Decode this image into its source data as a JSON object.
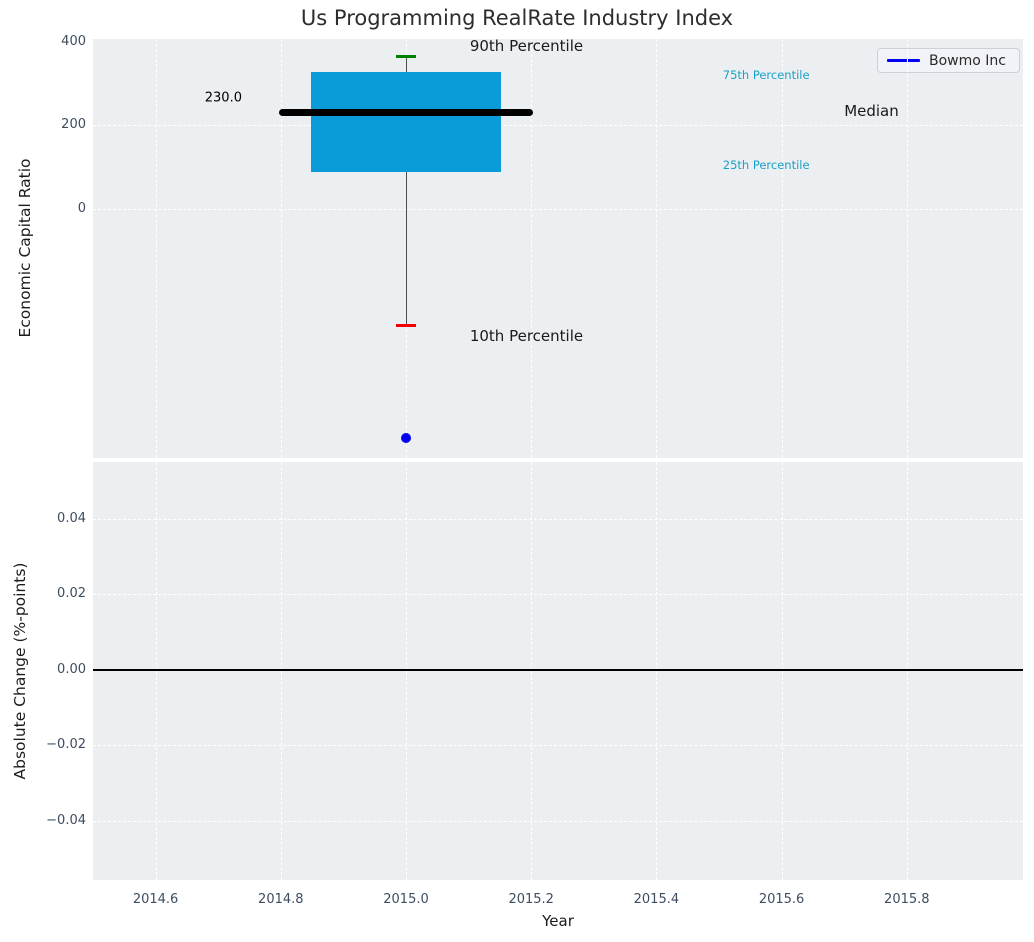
{
  "title": "Us Programming RealRate Industry Index",
  "colors": {
    "axes_background": "#ebeff1",
    "grid": "#ffffff",
    "tick_labels": "#3d4d60",
    "box_fill": "#0a9cd8",
    "median_line": "#000000",
    "cap_90th": "#008000",
    "cap_10th": "#f10000",
    "whisker": "#4d4d4d",
    "company_point": "#0202f2",
    "zero_line": "#000000"
  },
  "chart_data": [
    {
      "type": "boxplot",
      "ylabel": "Economic Capital Ratio",
      "xlim": [
        2014.5,
        2015.99
      ],
      "ylim": [
        -598,
        406
      ],
      "grid": true,
      "legend_position": "upper right",
      "yticks": [
        {
          "v": 400,
          "label": "400"
        },
        {
          "v": 200,
          "label": "200"
        },
        {
          "v": 0,
          "label": "0"
        }
      ],
      "grid_yvals": [
        200,
        0
      ],
      "box": {
        "x": 2015.0,
        "p90": 365,
        "q3": 327,
        "median": 230.0,
        "q1": 88,
        "p10": -281,
        "box_halfwidth": 0.152,
        "median_halfwidth": 0.203,
        "cap_halfwidth": 0.016
      },
      "median_value_label": {
        "text": "230.0",
        "x": 2014.738,
        "y": 265,
        "size": 13
      },
      "company_point": {
        "x": 2015.0,
        "y": -550
      },
      "annotations": [
        {
          "text": "90th Percentile",
          "x": 2015.102,
          "y": 389,
          "color": "#1a1a1a",
          "size": 15
        },
        {
          "text": "75th Percentile",
          "x": 2015.506,
          "y": 320,
          "color": "#1b9fc8",
          "size": 11.5
        },
        {
          "text": "Median",
          "x": 2015.7,
          "y": 234,
          "color": "#1a1a1a",
          "size": 15
        },
        {
          "text": "25th Percentile",
          "x": 2015.506,
          "y": 104,
          "color": "#1b9fc8",
          "size": 11.5
        },
        {
          "text": "10th Percentile",
          "x": 2015.102,
          "y": -305,
          "color": "#1a1a1a",
          "size": 15
        }
      ],
      "legend": {
        "label": "Bowmo Inc",
        "line_color": "#0202f0"
      }
    },
    {
      "type": "line",
      "ylabel": "Absolute Change (%-points)",
      "xlabel": "Year",
      "xlim": [
        2014.5,
        2015.99
      ],
      "ylim": [
        -0.0558,
        0.055
      ],
      "grid": true,
      "yticks": [
        {
          "v": 0.04,
          "label": "0.04"
        },
        {
          "v": 0.02,
          "label": "0.02"
        },
        {
          "v": 0.0,
          "label": "0.00"
        },
        {
          "v": -0.02,
          "label": "−0.02"
        },
        {
          "v": -0.04,
          "label": "−0.04"
        }
      ],
      "xticks": [
        {
          "v": 2014.6,
          "label": "2014.6"
        },
        {
          "v": 2014.8,
          "label": "2014.8"
        },
        {
          "v": 2015.0,
          "label": "2015.0"
        },
        {
          "v": 2015.2,
          "label": "2015.2"
        },
        {
          "v": 2015.4,
          "label": "2015.4"
        },
        {
          "v": 2015.6,
          "label": "2015.6"
        },
        {
          "v": 2015.8,
          "label": "2015.8"
        }
      ],
      "zero_line": {
        "y": 0.0
      },
      "series": []
    }
  ]
}
